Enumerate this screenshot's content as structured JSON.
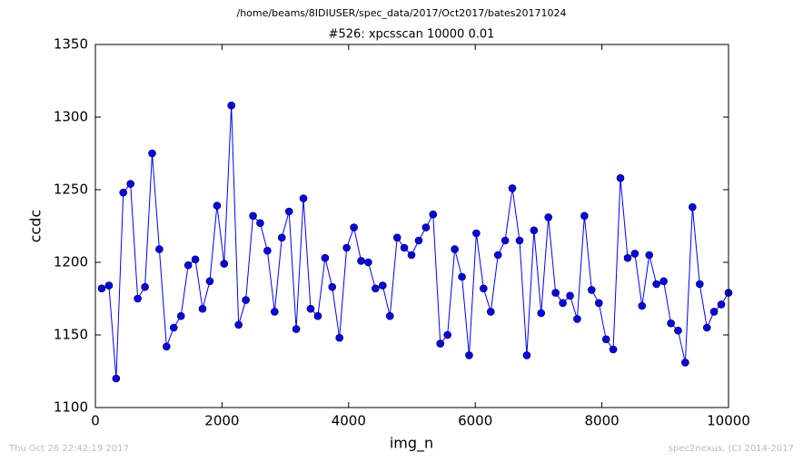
{
  "chart_data": {
    "type": "line",
    "suptitle": "/home/beams/8IDIUSER/spec_data/2017/Oct2017/bates20171024",
    "title": "#526: xpcsscan 10000 0.01",
    "xlabel": "img_n",
    "ylabel": "ccdc",
    "annotations": [
      "Thu Oct 26 22:42:19 2017",
      "spec2nexus, (C) 2014-2017"
    ],
    "xlim": [
      0,
      10000
    ],
    "xticks": [
      0,
      2000,
      4000,
      6000,
      8000,
      10000
    ],
    "ylim": [
      1100,
      1350
    ],
    "yticks": [
      1100,
      1150,
      1200,
      1250,
      1300,
      1350
    ],
    "grid": false,
    "markers": true,
    "x": [
      100,
      214,
      328,
      441,
      555,
      669,
      783,
      897,
      1010,
      1124,
      1238,
      1352,
      1466,
      1579,
      1693,
      1807,
      1921,
      2034,
      2148,
      2262,
      2376,
      2490,
      2603,
      2717,
      2831,
      2945,
      3059,
      3172,
      3286,
      3400,
      3514,
      3628,
      3741,
      3855,
      3969,
      4083,
      4197,
      4310,
      4424,
      4538,
      4652,
      4766,
      4879,
      4993,
      5107,
      5221,
      5334,
      5448,
      5562,
      5676,
      5790,
      5903,
      6017,
      6131,
      6245,
      6359,
      6472,
      6586,
      6700,
      6814,
      6928,
      7041,
      7155,
      7269,
      7383,
      7497,
      7610,
      7724,
      7838,
      7952,
      8066,
      8179,
      8293,
      8407,
      8521,
      8634,
      8748,
      8862,
      8976,
      9090,
      9203,
      9317,
      9431,
      9545,
      9659,
      9772,
      9886,
      10000
    ],
    "series": [
      {
        "color": "#0000ff",
        "values": [
          1182,
          1184,
          1120,
          1248,
          1254,
          1175,
          1183,
          1275,
          1209,
          1142,
          1155,
          1163,
          1198,
          1202,
          1168,
          1187,
          1239,
          1199,
          1308,
          1157,
          1174,
          1232,
          1227,
          1208,
          1166,
          1217,
          1235,
          1154,
          1244,
          1168,
          1163,
          1203,
          1183,
          1148,
          1210,
          1224,
          1201,
          1200,
          1182,
          1184,
          1163,
          1217,
          1210,
          1205,
          1215,
          1224,
          1233,
          1144,
          1150,
          1209,
          1190,
          1136,
          1220,
          1182,
          1166,
          1205,
          1215,
          1251,
          1215,
          1136,
          1222,
          1165,
          1231,
          1179,
          1172,
          1177,
          1161,
          1232,
          1181,
          1172,
          1147,
          1140,
          1258,
          1203,
          1206,
          1170,
          1205,
          1185,
          1187,
          1158,
          1153,
          1131,
          1238,
          1185,
          1155,
          1166,
          1171,
          1179
        ]
      }
    ]
  }
}
